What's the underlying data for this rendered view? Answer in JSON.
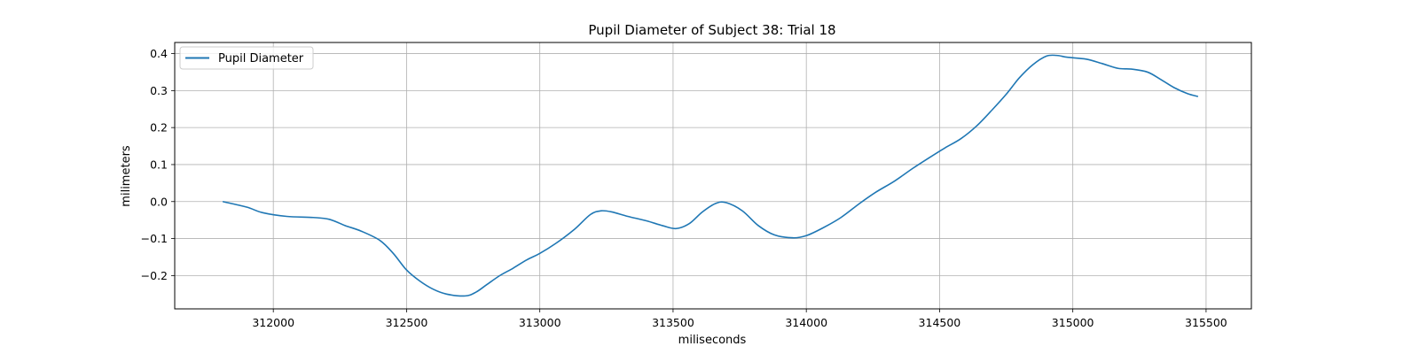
{
  "chart_data": {
    "type": "line",
    "title": "Pupil Diameter of Subject 38: Trial 18",
    "xlabel": "miliseconds",
    "ylabel": "milimeters",
    "xlim": [
      311630,
      315670
    ],
    "ylim": [
      -0.29,
      0.43
    ],
    "xticks": [
      312000,
      312500,
      313000,
      313500,
      314000,
      314500,
      315000,
      315500
    ],
    "yticks": [
      -0.2,
      -0.1,
      0.0,
      0.1,
      0.2,
      0.3,
      0.4
    ],
    "ytick_labels": [
      "−0.2",
      "−0.1",
      "0.0",
      "0.1",
      "0.2",
      "0.3",
      "0.4"
    ],
    "grid": true,
    "legend_position": "upper-left",
    "series": [
      {
        "name": "Pupil Diameter",
        "color": "#1f77b4",
        "x": [
          311810,
          311900,
          311960,
          312050,
          312150,
          312210,
          312270,
          312330,
          312400,
          312450,
          312500,
          312550,
          312600,
          312650,
          312720,
          312760,
          312800,
          312850,
          312900,
          312950,
          313000,
          313060,
          313130,
          313190,
          313230,
          313270,
          313330,
          313400,
          313460,
          313510,
          313560,
          313610,
          313660,
          313700,
          313760,
          313820,
          313880,
          313950,
          314000,
          314060,
          314130,
          314200,
          314260,
          314330,
          314400,
          314460,
          314520,
          314580,
          314640,
          314700,
          314750,
          314800,
          314850,
          314900,
          314940,
          314980,
          315050,
          315110,
          315170,
          315220,
          315280,
          315330,
          315380,
          315430,
          315470
        ],
        "y": [
          0.0,
          -0.015,
          -0.03,
          -0.04,
          -0.043,
          -0.048,
          -0.065,
          -0.08,
          -0.105,
          -0.14,
          -0.185,
          -0.215,
          -0.237,
          -0.25,
          -0.255,
          -0.245,
          -0.225,
          -0.2,
          -0.18,
          -0.158,
          -0.14,
          -0.113,
          -0.075,
          -0.035,
          -0.025,
          -0.028,
          -0.04,
          -0.052,
          -0.065,
          -0.073,
          -0.06,
          -0.028,
          -0.005,
          -0.003,
          -0.025,
          -0.065,
          -0.09,
          -0.098,
          -0.092,
          -0.072,
          -0.043,
          -0.005,
          0.025,
          0.055,
          0.09,
          0.118,
          0.145,
          0.17,
          0.205,
          0.25,
          0.29,
          0.335,
          0.37,
          0.393,
          0.395,
          0.39,
          0.385,
          0.373,
          0.36,
          0.358,
          0.35,
          0.33,
          0.308,
          0.292,
          0.284
        ]
      }
    ]
  }
}
